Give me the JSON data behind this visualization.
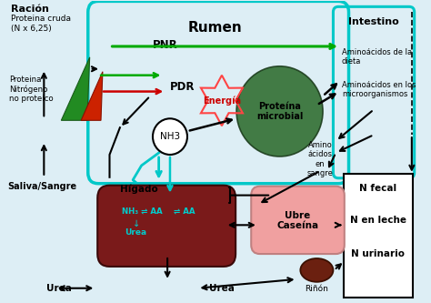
{
  "bg_color": "#ddeef5",
  "rumen_color": "#00c8c8",
  "intestino_color": "#00c8c8",
  "liver_color": "#7a1a1a",
  "kidney_color": "#6b2010",
  "ubre_color": "#f0a0a0",
  "green_tri_color": "#228B22",
  "red_tri_color": "#cc2200",
  "microbial_color": "#2d6b2d",
  "energy_color": "#ff4444",
  "nh3_fill": "#ffffff",
  "cyan_text": "#00cccc",
  "green_arrow": "#00aa00",
  "red_arrow": "#cc0000",
  "black": "#000000",
  "cyan_arrow": "#00c8c8",
  "white": "#ffffff",
  "nbox_color": "#ffffff",
  "racion_bold": "Ración",
  "racion_sub": "Proteina cruda\n(N x 6,25)",
  "proteina_label": "Proteina\nNitrógeno\nno proteico",
  "pnr_label": "PNR",
  "pdr_label": "PDR",
  "energia_label": "Energía",
  "pm_label": "Proteína\nmicrobial",
  "intestino_label": "Intestino",
  "aa_dieta": "Aminoácidos de la\ndieta",
  "aa_micro": "Aminoácidos en los\nmicroorganismos",
  "aa_sangre": "Amino\nácidos\nen\nsangre",
  "saliva_label": "Saliva/Sangre",
  "higado_label": "Hígado",
  "ubre_label": "Ubre\nCaseína",
  "nfecal": "N fecal",
  "nleche": "N en leche",
  "nurinario": "N urinario",
  "rinon_label": "Riñón",
  "urea1": "Urea",
  "urea2": "Urea",
  "rumen_label": "Rumen",
  "nh3_label": "NH3"
}
